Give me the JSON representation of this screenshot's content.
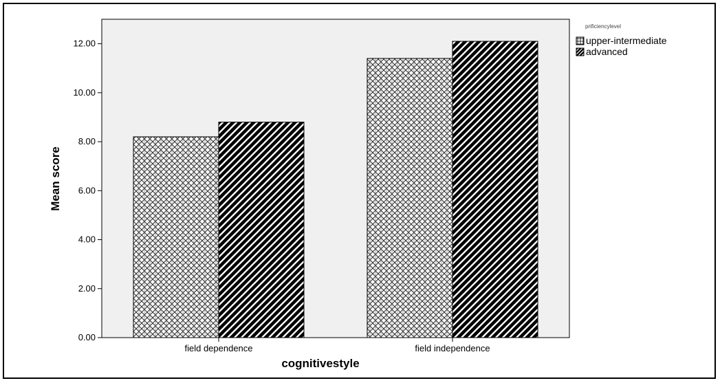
{
  "chart_data": {
    "type": "bar",
    "categories": [
      "field dependence",
      "field independence"
    ],
    "series": [
      {
        "name": "upper-intermediate",
        "values": [
          8.2,
          11.4
        ],
        "pattern": "crosshatch"
      },
      {
        "name": "advanced",
        "values": [
          8.8,
          12.1
        ],
        "pattern": "diagonal"
      }
    ],
    "xlabel": "cognitivestyle",
    "ylabel": "Mean score",
    "ylim": [
      0,
      13
    ],
    "yticks": [
      "0.00",
      "2.00",
      "4.00",
      "6.00",
      "8.00",
      "10.00",
      "12.00"
    ],
    "yticks_values": [
      0,
      2,
      4,
      6,
      8,
      10,
      12
    ],
    "legend_title": "prificiencylevel",
    "legend_position": "top-right",
    "plot_background": "#f0f0f0",
    "grid": false
  }
}
